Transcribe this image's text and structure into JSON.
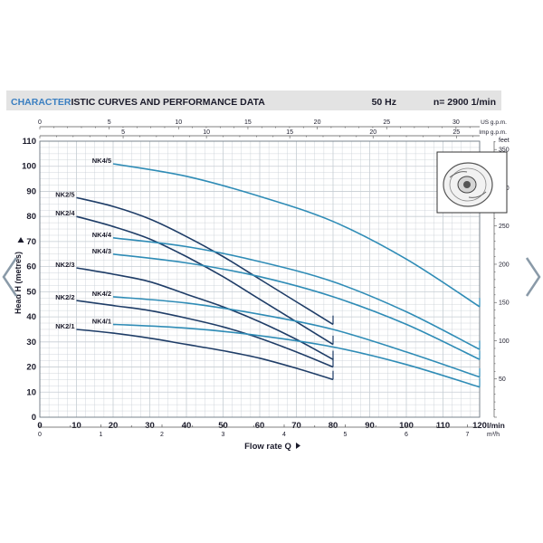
{
  "header": {
    "title_highlight": "CHARACTER",
    "title_rest": "ISTIC CURVES AND PERFORMANCE DATA",
    "frequency": "50 Hz",
    "speed": "n= 2900  1/min"
  },
  "colors": {
    "header_bg": "#e3e3e3",
    "title_highlight": "#3b7fc1",
    "grid": "#c6cdd3",
    "axis_text": "#1a1a2a",
    "series_dark": "#1f3d67",
    "series_light": "#2f8cb6",
    "nav_arrow": "#8a9aa8"
  },
  "icons": {
    "pump_impeller": "pump-impeller-icon",
    "nav_left": "chevron-left-icon",
    "nav_right": "chevron-right-icon"
  },
  "chart_data": {
    "type": "line",
    "title": "CHARACTERISTIC CURVES AND PERFORMANCE DATA",
    "xlabel": "Flow rate Q",
    "ylabel": "Head H (metres)",
    "x_unit": "l/min",
    "y_unit": "",
    "xlim": [
      0,
      120
    ],
    "ylim": [
      0,
      110
    ],
    "grid": true,
    "x_ticks": [
      0,
      10,
      20,
      30,
      40,
      50,
      60,
      70,
      80,
      90,
      100,
      110,
      120
    ],
    "y_ticks": [
      0,
      10,
      20,
      30,
      40,
      50,
      60,
      70,
      80,
      90,
      100,
      110
    ],
    "secondary_axes": {
      "top_usgpm": {
        "unit": "US g.p.m.",
        "ticks": [
          0,
          5,
          10,
          15,
          20,
          25,
          30
        ]
      },
      "top_impgpm": {
        "unit": "Imp g.p.m.",
        "ticks": [
          5,
          10,
          15,
          20,
          25
        ]
      },
      "bottom_m3h": {
        "unit": "m³/h",
        "ticks": [
          0,
          1,
          2,
          3,
          4,
          5,
          6,
          7
        ]
      },
      "right_feet": {
        "unit": "feet",
        "ticks": [
          50,
          100,
          150,
          200,
          250,
          300,
          350
        ]
      }
    },
    "series": [
      {
        "name": "NK4/5",
        "style": "light",
        "points": [
          [
            20,
            101
          ],
          [
            40,
            96
          ],
          [
            60,
            88
          ],
          [
            80,
            78
          ],
          [
            100,
            63
          ],
          [
            120,
            44
          ]
        ]
      },
      {
        "name": "NK2/5",
        "style": "dark",
        "points": [
          [
            10,
            87.5
          ],
          [
            20,
            84
          ],
          [
            30,
            79
          ],
          [
            40,
            72
          ],
          [
            50,
            64
          ],
          [
            60,
            55
          ],
          [
            70,
            46
          ],
          [
            80,
            37
          ]
        ]
      },
      {
        "name": "NK2/4",
        "style": "dark",
        "points": [
          [
            10,
            80
          ],
          [
            20,
            76
          ],
          [
            30,
            71
          ],
          [
            40,
            64
          ],
          [
            50,
            56
          ],
          [
            60,
            47
          ],
          [
            70,
            38
          ],
          [
            80,
            29
          ]
        ]
      },
      {
        "name": "NK4/4",
        "style": "light",
        "points": [
          [
            20,
            71.5
          ],
          [
            40,
            68
          ],
          [
            60,
            62
          ],
          [
            80,
            54
          ],
          [
            100,
            42
          ],
          [
            120,
            27
          ]
        ]
      },
      {
        "name": "NK4/3",
        "style": "light",
        "points": [
          [
            20,
            65
          ],
          [
            40,
            61.5
          ],
          [
            60,
            56
          ],
          [
            80,
            48
          ],
          [
            100,
            37
          ],
          [
            120,
            23
          ]
        ]
      },
      {
        "name": "NK2/3",
        "style": "dark",
        "points": [
          [
            10,
            59.5
          ],
          [
            20,
            57
          ],
          [
            30,
            54
          ],
          [
            40,
            49
          ],
          [
            50,
            44
          ],
          [
            60,
            38
          ],
          [
            70,
            31
          ],
          [
            80,
            23
          ]
        ]
      },
      {
        "name": "NK4/2",
        "style": "light",
        "points": [
          [
            20,
            48
          ],
          [
            40,
            45.5
          ],
          [
            60,
            41
          ],
          [
            80,
            35
          ],
          [
            100,
            26
          ],
          [
            120,
            16
          ]
        ]
      },
      {
        "name": "NK2/2",
        "style": "dark",
        "points": [
          [
            10,
            46.5
          ],
          [
            20,
            44.5
          ],
          [
            30,
            42.5
          ],
          [
            40,
            39.5
          ],
          [
            50,
            36
          ],
          [
            60,
            31.5
          ],
          [
            70,
            26
          ],
          [
            80,
            20
          ]
        ]
      },
      {
        "name": "NK4/1",
        "style": "light",
        "points": [
          [
            20,
            37
          ],
          [
            40,
            35.5
          ],
          [
            60,
            32.5
          ],
          [
            80,
            28
          ],
          [
            100,
            21
          ],
          [
            120,
            12
          ]
        ]
      },
      {
        "name": "NK2/1",
        "style": "dark",
        "points": [
          [
            10,
            35
          ],
          [
            20,
            33.5
          ],
          [
            30,
            31.5
          ],
          [
            40,
            29
          ],
          [
            50,
            26.5
          ],
          [
            60,
            23.5
          ],
          [
            70,
            19.5
          ],
          [
            80,
            15
          ]
        ]
      }
    ]
  }
}
